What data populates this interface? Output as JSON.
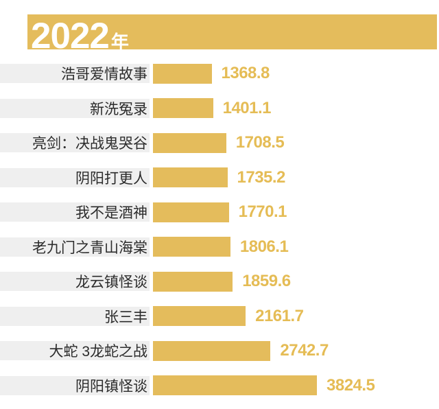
{
  "title_banner": {
    "year": "2022",
    "suffix": "年"
  },
  "colors": {
    "gold": "#E4BC5C",
    "label_strip_bg": "#EFEFEF",
    "label_text": "#2B2B2B",
    "value_text": "#E5BC55",
    "banner_text": "#FFFFFF",
    "background": "#FFFFFF"
  },
  "chart_data": {
    "type": "bar",
    "orientation": "horizontal",
    "title": "2022年",
    "categories": [
      "浩哥爱情故事",
      "新洗冤录",
      "亮剑：决战鬼哭谷",
      "阴阳打更人",
      "我不是酒神",
      "老九门之青山海棠",
      "龙云镇怪谈",
      "张三丰",
      "大蛇 3龙蛇之战",
      "阴阳镇怪谈"
    ],
    "values": [
      1368.8,
      1401.1,
      1708.5,
      1735.2,
      1770.1,
      1806.1,
      1859.6,
      2161.7,
      2742.7,
      3824.5
    ],
    "value_label_decimals": 1,
    "order": "ascending-top-to-bottom",
    "xlim": [
      0,
      4000
    ],
    "grid": false,
    "legend": false,
    "value_labels_shown": true
  }
}
